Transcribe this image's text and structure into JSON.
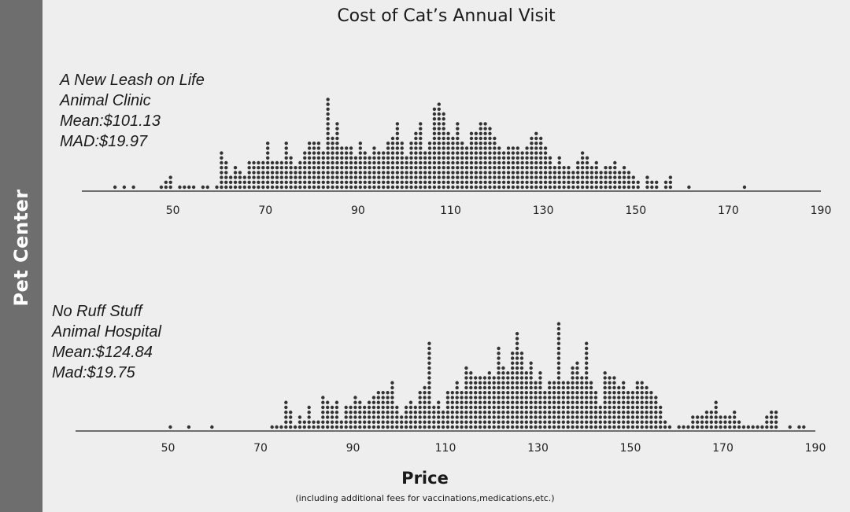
{
  "side_label": "Pet Center",
  "chart_data": [
    {
      "type": "dot plot",
      "title": "Cost of Cat’s Annual Visit",
      "group_label": [
        "A New Leash on Life",
        "Animal Clinic",
        "Mean:$101.13",
        "MAD:$19.97"
      ],
      "xlim": [
        30,
        190
      ],
      "xticks": [
        50,
        70,
        90,
        110,
        130,
        150,
        170,
        190
      ],
      "bin_width": 1,
      "dot_color": "#333333",
      "counts": {
        "37": 1,
        "39": 1,
        "41": 1,
        "47": 1,
        "48": 2,
        "49": 3,
        "51": 1,
        "52": 1,
        "53": 1,
        "54": 1,
        "56": 1,
        "57": 1,
        "59": 1,
        "60": 8,
        "61": 6,
        "62": 3,
        "63": 5,
        "64": 4,
        "65": 3,
        "66": 6,
        "67": 6,
        "68": 6,
        "69": 6,
        "70": 10,
        "71": 6,
        "72": 6,
        "73": 6,
        "74": 10,
        "75": 7,
        "76": 5,
        "77": 6,
        "78": 8,
        "79": 10,
        "80": 10,
        "81": 10,
        "82": 8,
        "83": 19,
        "84": 11,
        "85": 14,
        "86": 9,
        "87": 9,
        "88": 9,
        "89": 7,
        "90": 10,
        "91": 8,
        "92": 7,
        "93": 9,
        "94": 8,
        "95": 8,
        "96": 10,
        "97": 11,
        "98": 14,
        "99": 10,
        "100": 7,
        "101": 10,
        "102": 12,
        "103": 14,
        "104": 8,
        "105": 10,
        "106": 17,
        "107": 18,
        "108": 16,
        "109": 12,
        "110": 11,
        "111": 14,
        "112": 10,
        "113": 9,
        "114": 12,
        "115": 12,
        "116": 14,
        "117": 14,
        "118": 13,
        "119": 11,
        "120": 9,
        "121": 8,
        "122": 9,
        "123": 9,
        "124": 9,
        "125": 8,
        "126": 9,
        "127": 11,
        "128": 12,
        "129": 11,
        "130": 9,
        "131": 7,
        "132": 5,
        "133": 7,
        "134": 5,
        "135": 5,
        "136": 4,
        "137": 6,
        "138": 8,
        "139": 7,
        "140": 5,
        "141": 6,
        "142": 4,
        "143": 5,
        "144": 5,
        "145": 6,
        "146": 4,
        "147": 5,
        "148": 4,
        "149": 3,
        "150": 2,
        "152": 3,
        "153": 2,
        "154": 2,
        "156": 2,
        "157": 3,
        "161": 1,
        "173": 1
      }
    },
    {
      "type": "dot plot",
      "group_label": [
        "No Ruff Stuff",
        "Animal Hospital",
        "Mean:$124.84",
        "Mad:$19.75"
      ],
      "xlim": [
        30,
        190
      ],
      "xticks": [
        50,
        70,
        90,
        110,
        130,
        150,
        170,
        190
      ],
      "bin_width": 1,
      "dot_color": "#333333",
      "counts": {
        "50": 1,
        "54": 1,
        "59": 1,
        "72": 1,
        "73": 1,
        "74": 1,
        "75": 6,
        "76": 4,
        "77": 1,
        "78": 3,
        "79": 2,
        "80": 5,
        "81": 2,
        "82": 2,
        "83": 7,
        "84": 6,
        "85": 5,
        "86": 6,
        "87": 2,
        "88": 5,
        "89": 5,
        "90": 7,
        "91": 6,
        "92": 5,
        "93": 6,
        "94": 7,
        "95": 8,
        "96": 8,
        "97": 8,
        "98": 10,
        "99": 5,
        "100": 3,
        "101": 5,
        "102": 6,
        "103": 5,
        "104": 8,
        "105": 9,
        "106": 18,
        "107": 5,
        "108": 6,
        "109": 4,
        "110": 8,
        "111": 8,
        "112": 10,
        "113": 8,
        "114": 13,
        "115": 12,
        "116": 11,
        "117": 11,
        "118": 11,
        "119": 12,
        "120": 11,
        "121": 17,
        "122": 13,
        "123": 12,
        "124": 16,
        "125": 20,
        "126": 16,
        "127": 12,
        "128": 14,
        "129": 10,
        "130": 12,
        "131": 8,
        "132": 10,
        "133": 10,
        "134": 22,
        "135": 10,
        "136": 10,
        "137": 13,
        "138": 14,
        "139": 11,
        "140": 18,
        "141": 10,
        "142": 8,
        "143": 5,
        "144": 12,
        "145": 11,
        "146": 11,
        "147": 9,
        "148": 10,
        "149": 8,
        "150": 8,
        "151": 10,
        "152": 10,
        "153": 9,
        "154": 8,
        "155": 7,
        "156": 5,
        "157": 2,
        "158": 1,
        "160": 1,
        "161": 1,
        "162": 1,
        "163": 3,
        "164": 3,
        "165": 3,
        "166": 4,
        "167": 4,
        "168": 6,
        "169": 3,
        "170": 3,
        "171": 3,
        "172": 4,
        "173": 2,
        "174": 1,
        "175": 1,
        "176": 1,
        "177": 1,
        "178": 1,
        "179": 3,
        "180": 4,
        "181": 4,
        "184": 1,
        "186": 1,
        "187": 1
      }
    }
  ],
  "xlabel": "Price",
  "xsublabel": "(including additional fees for vaccinations,medications,etc.)"
}
